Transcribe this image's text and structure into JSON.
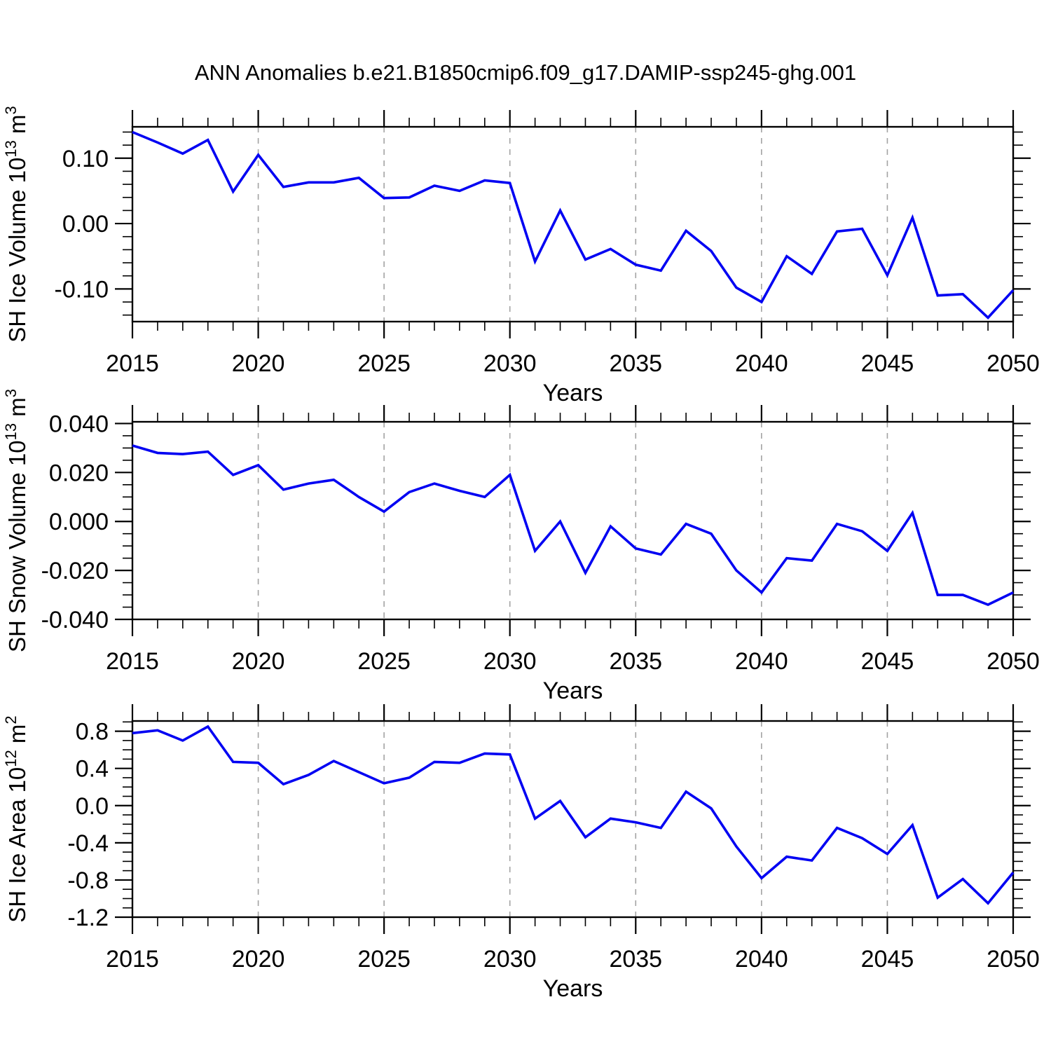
{
  "title": "ANN Anomalies b.e21.B1850cmip6.f09_g17.DAMIP-ssp245-ghg.001",
  "colors": {
    "line": "#0202f2",
    "grid": "#a3a3a3",
    "axis": "#000000",
    "text": "#000000",
    "background": "#ffffff"
  },
  "x_axis": {
    "label": "Years",
    "min": 2015,
    "max": 2050,
    "major_ticks": [
      2015,
      2020,
      2025,
      2030,
      2035,
      2040,
      2045,
      2050
    ],
    "tick_labels": [
      "2015",
      "2020",
      "2025",
      "2030",
      "2035",
      "2040",
      "2045",
      "2050"
    ],
    "minor_step": 1,
    "grid_years": [
      2020,
      2025,
      2030,
      2035,
      2040,
      2045
    ]
  },
  "years": [
    2015,
    2016,
    2017,
    2018,
    2019,
    2020,
    2021,
    2022,
    2023,
    2024,
    2025,
    2026,
    2027,
    2028,
    2029,
    2030,
    2031,
    2032,
    2033,
    2034,
    2035,
    2036,
    2037,
    2038,
    2039,
    2040,
    2041,
    2042,
    2043,
    2044,
    2045,
    2046,
    2047,
    2048,
    2049,
    2050
  ],
  "chart_data": [
    {
      "type": "line",
      "id": "sh-ice-volume",
      "title": "",
      "xlabel": "Years",
      "ylabel": "SH Ice Volume 10^13 m^3",
      "ylabel_parts": [
        {
          "text": "SH Ice Volume 10",
          "sup": false
        },
        {
          "text": "13",
          "sup": true
        },
        {
          "text": " m",
          "sup": false
        },
        {
          "text": "3",
          "sup": true
        }
      ],
      "ylim": [
        -0.15,
        0.148
      ],
      "y_minor_step": 0.02,
      "grid": "vertical-dashed",
      "legend": "none",
      "yticks": [
        {
          "value": 0.1,
          "label": "0.10"
        },
        {
          "value": 0.0,
          "label": "0.00"
        },
        {
          "value": -0.1,
          "label": "-0.10"
        }
      ],
      "values": [
        0.14,
        0.124,
        0.107,
        0.128,
        0.049,
        0.105,
        0.056,
        0.063,
        0.063,
        0.07,
        0.039,
        0.04,
        0.058,
        0.05,
        0.066,
        0.062,
        -0.058,
        0.02,
        -0.055,
        -0.039,
        -0.063,
        -0.072,
        -0.011,
        -0.042,
        -0.098,
        -0.12,
        -0.05,
        -0.077,
        -0.012,
        -0.008,
        -0.079,
        0.009,
        -0.11,
        -0.108,
        -0.144,
        -0.102
      ]
    },
    {
      "type": "line",
      "id": "sh-snow-volume",
      "title": "",
      "xlabel": "Years",
      "ylabel": "SH Snow Volume 10^13 m^3",
      "ylabel_parts": [
        {
          "text": "SH Snow Volume 10",
          "sup": false
        },
        {
          "text": "13",
          "sup": true
        },
        {
          "text": " m",
          "sup": false
        },
        {
          "text": "3",
          "sup": true
        }
      ],
      "ylim": [
        -0.04,
        0.0407
      ],
      "y_minor_step": 0.005,
      "grid": "vertical-dashed",
      "legend": "none",
      "yticks": [
        {
          "value": 0.04,
          "label": "0.040"
        },
        {
          "value": 0.02,
          "label": "0.020"
        },
        {
          "value": 0.0,
          "label": "0.000"
        },
        {
          "value": -0.02,
          "label": "-0.020"
        },
        {
          "value": -0.04,
          "label": "-0.040"
        }
      ],
      "values": [
        0.031,
        0.028,
        0.0275,
        0.0285,
        0.019,
        0.023,
        0.013,
        0.0155,
        0.017,
        0.01,
        0.004,
        0.012,
        0.0155,
        0.0125,
        0.01,
        0.019,
        -0.012,
        0.0,
        -0.021,
        -0.002,
        -0.011,
        -0.0135,
        -0.001,
        -0.005,
        -0.02,
        -0.029,
        -0.015,
        -0.016,
        -0.001,
        -0.004,
        -0.012,
        0.0035,
        -0.03,
        -0.03,
        -0.034,
        -0.029
      ]
    },
    {
      "type": "line",
      "id": "sh-ice-area",
      "title": "",
      "xlabel": "Years",
      "ylabel": "SH Ice Area 10^12 m^2",
      "ylabel_parts": [
        {
          "text": "SH Ice Area 10",
          "sup": false
        },
        {
          "text": "12",
          "sup": true
        },
        {
          "text": " m",
          "sup": false
        },
        {
          "text": "2",
          "sup": true
        }
      ],
      "ylim": [
        -1.2,
        0.91
      ],
      "y_minor_step": 0.1,
      "grid": "vertical-dashed",
      "legend": "none",
      "yticks": [
        {
          "value": 0.8,
          "label": "0.8"
        },
        {
          "value": 0.4,
          "label": "0.4"
        },
        {
          "value": 0.0,
          "label": "0.0"
        },
        {
          "value": -0.4,
          "label": "-0.4"
        },
        {
          "value": -0.8,
          "label": "-0.8"
        },
        {
          "value": -1.2,
          "label": "-1.2"
        }
      ],
      "values": [
        0.78,
        0.81,
        0.7,
        0.85,
        0.47,
        0.46,
        0.23,
        0.33,
        0.48,
        0.36,
        0.24,
        0.3,
        0.47,
        0.46,
        0.56,
        0.55,
        -0.14,
        0.05,
        -0.34,
        -0.14,
        -0.18,
        -0.24,
        0.15,
        -0.03,
        -0.44,
        -0.78,
        -0.55,
        -0.59,
        -0.24,
        -0.35,
        -0.52,
        -0.21,
        -0.99,
        -0.79,
        -1.05,
        -0.72
      ]
    }
  ]
}
